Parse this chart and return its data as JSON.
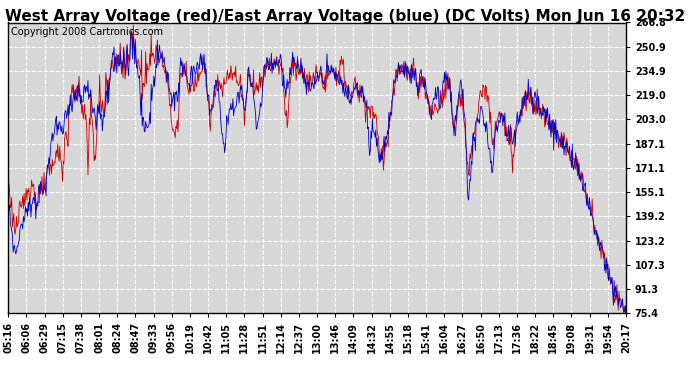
{
  "title": "West Array Voltage (red)/East Array Voltage (blue) (DC Volts) Mon Jun 16 20:32",
  "copyright": "Copyright 2008 Cartronics.com",
  "y_min": 75.4,
  "y_max": 266.8,
  "y_ticks": [
    266.8,
    250.9,
    234.9,
    219.0,
    203.0,
    187.1,
    171.1,
    155.1,
    139.2,
    123.2,
    107.3,
    91.3,
    75.4
  ],
  "x_labels": [
    "05:16",
    "06:06",
    "06:29",
    "07:15",
    "07:38",
    "08:01",
    "08:24",
    "08:47",
    "09:33",
    "09:56",
    "10:19",
    "10:42",
    "11:05",
    "11:28",
    "11:51",
    "12:14",
    "12:37",
    "13:00",
    "13:46",
    "14:09",
    "14:32",
    "14:55",
    "15:18",
    "15:41",
    "16:04",
    "16:27",
    "16:50",
    "17:13",
    "17:36",
    "18:22",
    "18:45",
    "19:08",
    "19:31",
    "19:54",
    "20:17"
  ],
  "red_color": "#cc0000",
  "blue_color": "#0000cc",
  "bg_color": "#ffffff",
  "plot_bg_color": "#d8d8d8",
  "grid_color": "#ffffff",
  "title_fontsize": 11,
  "copyright_fontsize": 7,
  "tick_fontsize": 7,
  "seed": 123
}
